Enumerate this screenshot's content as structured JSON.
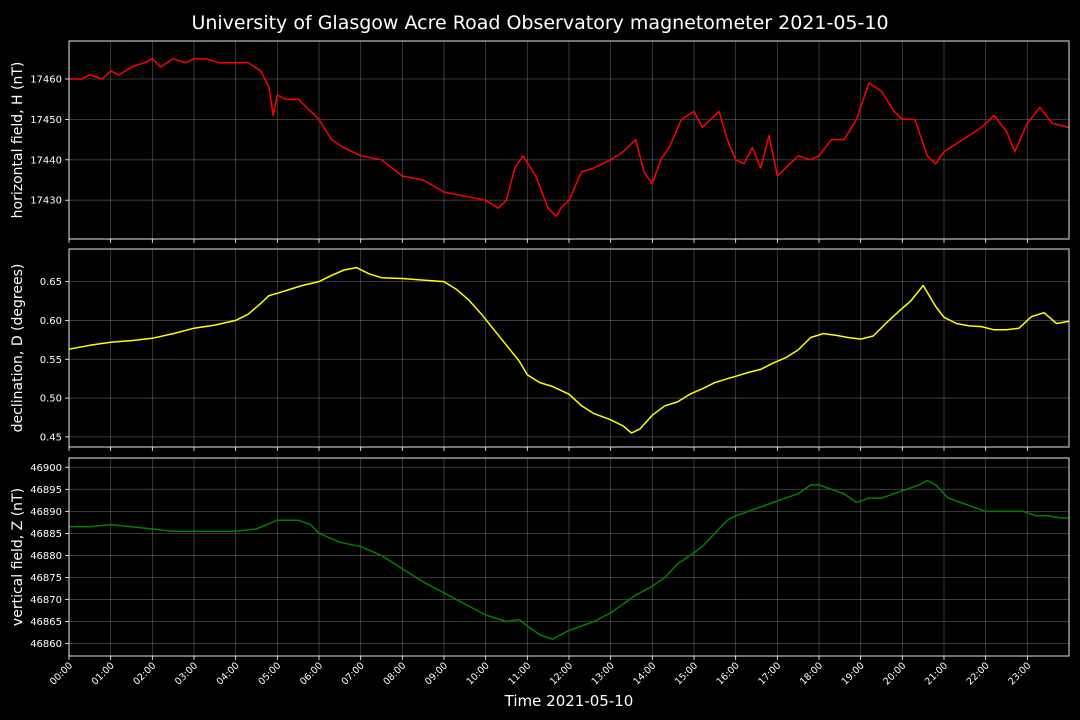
{
  "title": "University of Glasgow Acre Road Observatory magnetometer 2021-05-10",
  "xlabel": "Time 2021-05-10",
  "x_ticks": [
    "00:00",
    "01:00",
    "02:00",
    "03:00",
    "04:00",
    "05:00",
    "06:00",
    "07:00",
    "08:00",
    "09:00",
    "10:00",
    "11:00",
    "12:00",
    "13:00",
    "14:00",
    "15:00",
    "16:00",
    "17:00",
    "18:00",
    "19:00",
    "20:00",
    "21:00",
    "22:00",
    "23:00"
  ],
  "chart_data": [
    {
      "type": "line",
      "ylabel": "horizontal field, H (nT)",
      "color": "#ff0000",
      "ylim": [
        17420.4,
        17469.4
      ],
      "yticks": [
        17430,
        17440,
        17450,
        17460
      ],
      "xlim_hours": [
        0,
        24
      ],
      "grid": true,
      "series": [
        {
          "x": [
            0,
            0.3,
            0.5,
            0.8,
            1.0,
            1.2,
            1.5,
            1.8,
            2.0,
            2.2,
            2.5,
            2.8,
            3.0,
            3.3,
            3.6,
            4.0,
            4.3,
            4.6,
            4.8,
            4.9,
            5.0,
            5.2,
            5.5,
            5.8,
            6.0,
            6.3,
            6.6,
            7.0,
            7.5,
            8.0,
            8.5,
            9.0,
            9.5,
            10.0,
            10.3,
            10.5,
            10.7,
            10.9,
            11.2,
            11.5,
            11.7,
            11.8,
            12.0,
            12.3,
            12.6,
            13.0,
            13.3,
            13.6,
            13.8,
            14.0,
            14.2,
            14.4,
            14.7,
            15.0,
            15.2,
            15.4,
            15.6,
            15.8,
            16.0,
            16.2,
            16.4,
            16.6,
            16.8,
            17.0,
            17.2,
            17.5,
            17.8,
            18.0,
            18.3,
            18.6,
            18.9,
            19.2,
            19.5,
            19.8,
            20.0,
            20.3,
            20.6,
            20.8,
            21.0,
            21.3,
            21.6,
            21.9,
            22.2,
            22.5,
            22.7,
            23.0,
            23.3,
            23.6,
            24.0
          ],
          "values": [
            17460,
            17460,
            17461,
            17460,
            17462,
            17461,
            17463,
            17464,
            17465,
            17463,
            17465,
            17464,
            17465,
            17465,
            17464,
            17464,
            17464,
            17462,
            17458,
            17451,
            17456,
            17455,
            17455,
            17452,
            17450,
            17445,
            17443,
            17441,
            17440,
            17436,
            17435,
            17432,
            17431,
            17430,
            17428,
            17430,
            17438,
            17441,
            17436,
            17428,
            17426,
            17428,
            17430,
            17437,
            17438,
            17440,
            17442,
            17445,
            17437,
            17434,
            17440,
            17443,
            17450,
            17452,
            17448,
            17450,
            17452,
            17445,
            17440,
            17439,
            17443,
            17438,
            17446,
            17436,
            17438,
            17441,
            17440,
            17441,
            17445,
            17445,
            17450,
            17459,
            17457,
            17452,
            17450,
            17450,
            17441,
            17439,
            17442,
            17444,
            17446,
            17448,
            17451,
            17447,
            17442,
            17449,
            17453,
            17449,
            17448
          ]
        }
      ]
    },
    {
      "type": "line",
      "ylabel": "declination, D (degrees)",
      "color": "#ffff00",
      "ylim": [
        0.437,
        0.692
      ],
      "yticks": [
        0.45,
        0.5,
        0.55,
        0.6,
        0.65
      ],
      "xlim_hours": [
        0,
        24
      ],
      "grid": true,
      "series": [
        {
          "x": [
            0,
            0.5,
            1.0,
            1.5,
            2.0,
            2.5,
            3.0,
            3.5,
            4.0,
            4.3,
            4.6,
            4.8,
            5.0,
            5.3,
            5.6,
            6.0,
            6.3,
            6.6,
            6.9,
            7.2,
            7.5,
            8.0,
            8.5,
            9.0,
            9.3,
            9.6,
            9.9,
            10.2,
            10.5,
            10.8,
            11.0,
            11.3,
            11.6,
            12.0,
            12.3,
            12.6,
            13.0,
            13.3,
            13.5,
            13.7,
            14.0,
            14.3,
            14.6,
            14.9,
            15.2,
            15.5,
            15.8,
            16.0,
            16.3,
            16.6,
            16.9,
            17.2,
            17.5,
            17.8,
            18.1,
            18.4,
            18.7,
            19.0,
            19.3,
            19.6,
            19.9,
            20.2,
            20.5,
            20.8,
            21.0,
            21.3,
            21.6,
            21.9,
            22.2,
            22.5,
            22.8,
            23.1,
            23.4,
            23.7,
            24.0
          ],
          "values": [
            0.563,
            0.568,
            0.572,
            0.574,
            0.577,
            0.583,
            0.59,
            0.594,
            0.6,
            0.608,
            0.622,
            0.632,
            0.635,
            0.64,
            0.645,
            0.65,
            0.658,
            0.665,
            0.668,
            0.66,
            0.655,
            0.654,
            0.652,
            0.65,
            0.64,
            0.626,
            0.608,
            0.588,
            0.568,
            0.548,
            0.53,
            0.52,
            0.515,
            0.505,
            0.49,
            0.48,
            0.472,
            0.464,
            0.455,
            0.46,
            0.478,
            0.49,
            0.495,
            0.505,
            0.512,
            0.52,
            0.525,
            0.528,
            0.533,
            0.537,
            0.545,
            0.552,
            0.562,
            0.578,
            0.583,
            0.581,
            0.578,
            0.576,
            0.58,
            0.596,
            0.611,
            0.625,
            0.645,
            0.618,
            0.604,
            0.596,
            0.593,
            0.592,
            0.588,
            0.588,
            0.59,
            0.605,
            0.61,
            0.596,
            0.599
          ]
        }
      ]
    },
    {
      "type": "line",
      "ylabel": "vertical field, Z (nT)",
      "color": "#008000",
      "ylim": [
        46857.2,
        46902.1
      ],
      "yticks": [
        46860,
        46865,
        46870,
        46875,
        46880,
        46885,
        46890,
        46895,
        46900
      ],
      "xlim_hours": [
        0,
        24
      ],
      "grid": true,
      "series": [
        {
          "x": [
            0,
            0.5,
            1.0,
            1.5,
            2.0,
            2.5,
            3.0,
            3.5,
            4.0,
            4.5,
            5.0,
            5.5,
            5.8,
            6.0,
            6.5,
            7.0,
            7.5,
            8.0,
            8.5,
            9.0,
            9.5,
            10.0,
            10.5,
            10.8,
            11.0,
            11.3,
            11.6,
            12.0,
            12.3,
            12.6,
            13.0,
            13.3,
            13.6,
            14.0,
            14.3,
            14.6,
            14.9,
            15.2,
            15.5,
            15.8,
            16.0,
            16.3,
            16.6,
            16.9,
            17.2,
            17.5,
            17.8,
            18.0,
            18.3,
            18.6,
            18.9,
            19.2,
            19.5,
            19.8,
            20.1,
            20.4,
            20.6,
            20.8,
            21.1,
            21.4,
            21.7,
            22.0,
            22.3,
            22.6,
            22.9,
            23.2,
            23.5,
            23.8,
            24.0
          ],
          "values": [
            46886.5,
            46886.5,
            46887,
            46886.5,
            46886,
            46885.5,
            46885.5,
            46885.5,
            46885.5,
            46886,
            46888,
            46888,
            46887,
            46885,
            46883,
            46882,
            46880,
            46877,
            46874,
            46871.5,
            46869,
            46866.5,
            46865,
            46865.5,
            46864,
            46862,
            46861,
            46863,
            46864,
            46865,
            46867,
            46869,
            46871,
            46873,
            46875,
            46878,
            46880,
            46882,
            46885,
            46888,
            46889,
            46890,
            46891,
            46892,
            46893,
            46894,
            46896,
            46896,
            46895,
            46894,
            46892,
            46893,
            46893,
            46894,
            46895,
            46896,
            46897,
            46896,
            46893,
            46892,
            46891,
            46890,
            46890,
            46890,
            46890,
            46889,
            46889,
            46888.5,
            46888.5
          ]
        }
      ]
    }
  ]
}
